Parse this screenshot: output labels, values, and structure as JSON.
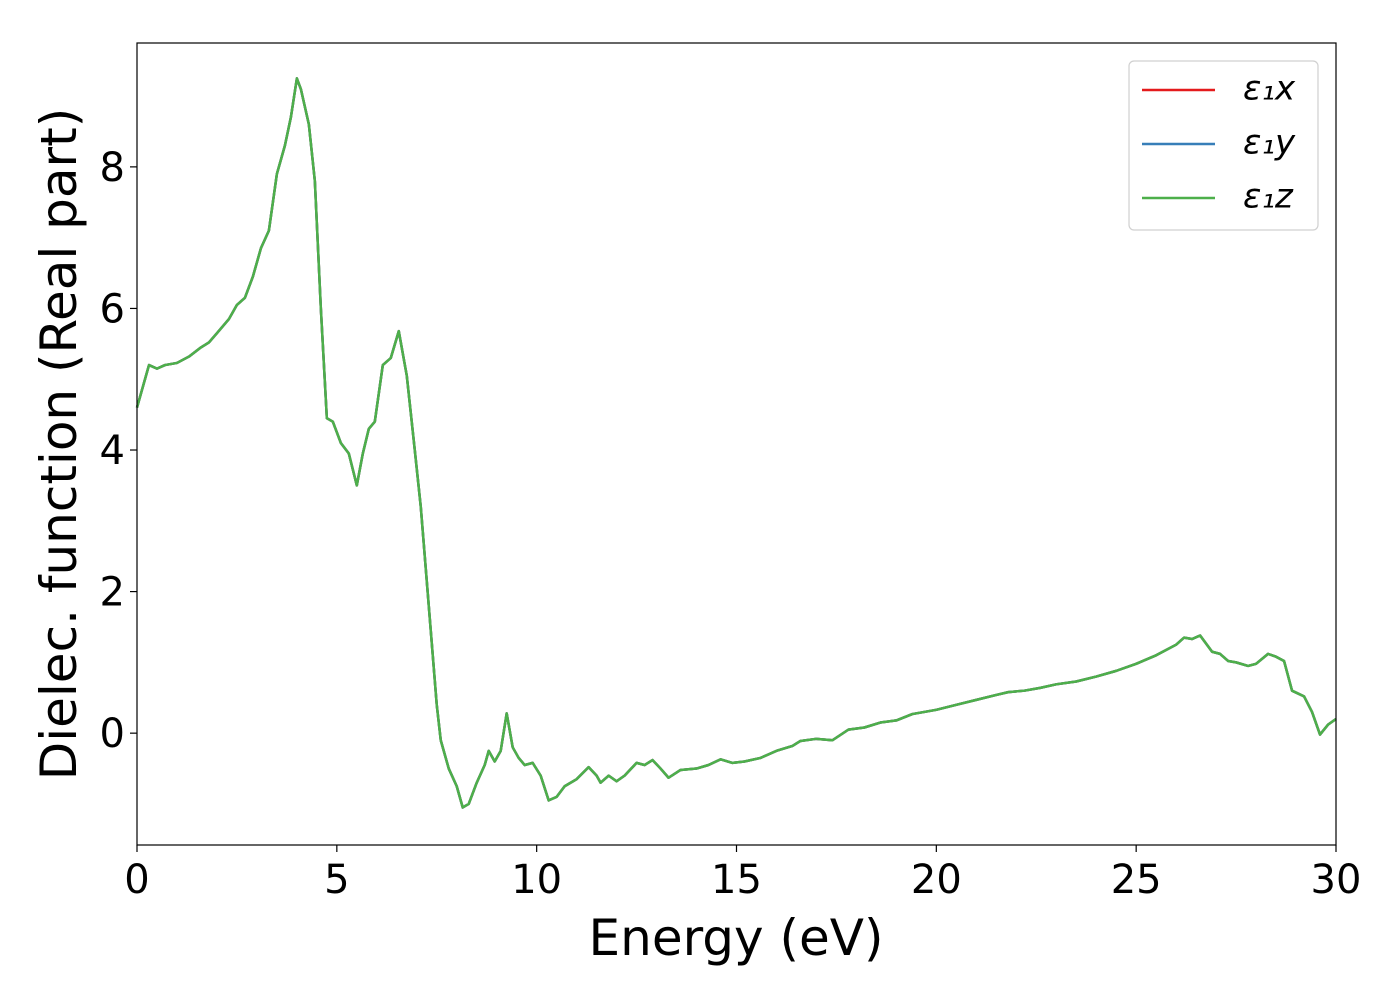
{
  "chart_data": {
    "type": "line",
    "xlabel": "Energy (eV)",
    "ylabel": "Dielec. function (Real part)",
    "xlim": [
      0,
      30
    ],
    "ylim": [
      -1.58,
      9.75
    ],
    "xticks": [
      0,
      5,
      10,
      15,
      20,
      25,
      30
    ],
    "yticks": [
      0,
      2,
      4,
      6,
      8
    ],
    "grid": false,
    "legend": "upper right",
    "x": [
      0,
      0.2,
      0.3,
      0.5,
      0.7,
      1.0,
      1.3,
      1.6,
      1.8,
      2.0,
      2.3,
      2.5,
      2.7,
      2.9,
      3.1,
      3.3,
      3.5,
      3.7,
      3.85,
      4.0,
      4.1,
      4.3,
      4.45,
      4.6,
      4.75,
      4.9,
      5.1,
      5.3,
      5.5,
      5.65,
      5.8,
      5.95,
      6.15,
      6.35,
      6.55,
      6.75,
      6.95,
      7.1,
      7.3,
      7.5,
      7.6,
      7.8,
      8.0,
      8.15,
      8.3,
      8.5,
      8.7,
      8.8,
      8.95,
      9.1,
      9.25,
      9.4,
      9.55,
      9.7,
      9.9,
      10.1,
      10.3,
      10.5,
      10.7,
      11.0,
      11.3,
      11.5,
      11.6,
      11.8,
      12.0,
      12.2,
      12.5,
      12.7,
      12.9,
      13.1,
      13.3,
      13.6,
      14.0,
      14.3,
      14.6,
      14.9,
      15.2,
      15.6,
      16.0,
      16.4,
      16.6,
      17.0,
      17.4,
      17.8,
      18.2,
      18.6,
      19.0,
      19.4,
      20.0,
      20.5,
      21.0,
      21.5,
      21.8,
      22.2,
      22.6,
      23.0,
      23.5,
      24.0,
      24.5,
      25.0,
      25.5,
      26.0,
      26.2,
      26.4,
      26.6,
      26.9,
      27.1,
      27.3,
      27.5,
      27.8,
      28.0,
      28.3,
      28.5,
      28.7,
      28.9,
      29.2,
      29.4,
      29.6,
      29.8,
      30.0
    ],
    "series": [
      {
        "name": "ε₁x",
        "color": "#e41a1c",
        "values": [
          4.6,
          5.0,
          5.2,
          5.15,
          5.2,
          5.23,
          5.32,
          5.45,
          5.52,
          5.65,
          5.85,
          6.05,
          6.15,
          6.45,
          6.85,
          7.1,
          7.9,
          8.3,
          8.7,
          9.25,
          9.1,
          8.6,
          7.8,
          6.0,
          4.45,
          4.4,
          4.1,
          3.95,
          3.5,
          3.95,
          4.3,
          4.4,
          5.2,
          5.3,
          5.68,
          5.05,
          4.0,
          3.2,
          1.8,
          0.4,
          -0.1,
          -0.5,
          -0.75,
          -1.05,
          -1.0,
          -0.7,
          -0.45,
          -0.25,
          -0.4,
          -0.25,
          0.28,
          -0.2,
          -0.35,
          -0.45,
          -0.42,
          -0.6,
          -0.95,
          -0.9,
          -0.75,
          -0.65,
          -0.48,
          -0.6,
          -0.7,
          -0.6,
          -0.68,
          -0.6,
          -0.42,
          -0.45,
          -0.38,
          -0.5,
          -0.63,
          -0.52,
          -0.5,
          -0.45,
          -0.37,
          -0.42,
          -0.4,
          -0.35,
          -0.25,
          -0.18,
          -0.11,
          -0.08,
          -0.1,
          0.05,
          0.08,
          0.15,
          0.18,
          0.27,
          0.33,
          0.4,
          0.47,
          0.54,
          0.58,
          0.6,
          0.64,
          0.69,
          0.73,
          0.8,
          0.88,
          0.98,
          1.1,
          1.25,
          1.35,
          1.33,
          1.38,
          1.15,
          1.12,
          1.02,
          1.0,
          0.95,
          0.98,
          1.12,
          1.08,
          1.02,
          0.6,
          0.52,
          0.3,
          -0.02,
          0.12,
          0.2
        ]
      },
      {
        "name": "ε₁y",
        "color": "#377eb8",
        "values": [
          4.6,
          5.0,
          5.2,
          5.15,
          5.2,
          5.23,
          5.32,
          5.45,
          5.52,
          5.65,
          5.85,
          6.05,
          6.15,
          6.45,
          6.85,
          7.1,
          7.9,
          8.3,
          8.7,
          9.25,
          9.1,
          8.6,
          7.8,
          6.0,
          4.45,
          4.4,
          4.1,
          3.95,
          3.5,
          3.95,
          4.3,
          4.4,
          5.2,
          5.3,
          5.68,
          5.05,
          4.0,
          3.2,
          1.8,
          0.4,
          -0.1,
          -0.5,
          -0.75,
          -1.05,
          -1.0,
          -0.7,
          -0.45,
          -0.25,
          -0.4,
          -0.25,
          0.28,
          -0.2,
          -0.35,
          -0.45,
          -0.42,
          -0.6,
          -0.95,
          -0.9,
          -0.75,
          -0.65,
          -0.48,
          -0.6,
          -0.7,
          -0.6,
          -0.68,
          -0.6,
          -0.42,
          -0.45,
          -0.38,
          -0.5,
          -0.63,
          -0.52,
          -0.5,
          -0.45,
          -0.37,
          -0.42,
          -0.4,
          -0.35,
          -0.25,
          -0.18,
          -0.11,
          -0.08,
          -0.1,
          0.05,
          0.08,
          0.15,
          0.18,
          0.27,
          0.33,
          0.4,
          0.47,
          0.54,
          0.58,
          0.6,
          0.64,
          0.69,
          0.73,
          0.8,
          0.88,
          0.98,
          1.1,
          1.25,
          1.35,
          1.33,
          1.38,
          1.15,
          1.12,
          1.02,
          1.0,
          0.95,
          0.98,
          1.12,
          1.08,
          1.02,
          0.6,
          0.52,
          0.3,
          -0.02,
          0.12,
          0.2
        ]
      },
      {
        "name": "ε₁z",
        "color": "#4daf4a",
        "values": [
          4.6,
          5.0,
          5.2,
          5.15,
          5.2,
          5.23,
          5.32,
          5.45,
          5.52,
          5.65,
          5.85,
          6.05,
          6.15,
          6.45,
          6.85,
          7.1,
          7.9,
          8.3,
          8.7,
          9.25,
          9.1,
          8.6,
          7.8,
          6.0,
          4.45,
          4.4,
          4.1,
          3.95,
          3.5,
          3.95,
          4.3,
          4.4,
          5.2,
          5.3,
          5.68,
          5.05,
          4.0,
          3.2,
          1.8,
          0.4,
          -0.1,
          -0.5,
          -0.75,
          -1.05,
          -1.0,
          -0.7,
          -0.45,
          -0.25,
          -0.4,
          -0.25,
          0.28,
          -0.2,
          -0.35,
          -0.45,
          -0.42,
          -0.6,
          -0.95,
          -0.9,
          -0.75,
          -0.65,
          -0.48,
          -0.6,
          -0.7,
          -0.6,
          -0.68,
          -0.6,
          -0.42,
          -0.45,
          -0.38,
          -0.5,
          -0.63,
          -0.52,
          -0.5,
          -0.45,
          -0.37,
          -0.42,
          -0.4,
          -0.35,
          -0.25,
          -0.18,
          -0.11,
          -0.08,
          -0.1,
          0.05,
          0.08,
          0.15,
          0.18,
          0.27,
          0.33,
          0.4,
          0.47,
          0.54,
          0.58,
          0.6,
          0.64,
          0.69,
          0.73,
          0.8,
          0.88,
          0.98,
          1.1,
          1.25,
          1.35,
          1.33,
          1.38,
          1.15,
          1.12,
          1.02,
          1.0,
          0.95,
          0.98,
          1.12,
          1.08,
          1.02,
          0.6,
          0.52,
          0.3,
          -0.02,
          0.12,
          0.2
        ]
      }
    ]
  }
}
